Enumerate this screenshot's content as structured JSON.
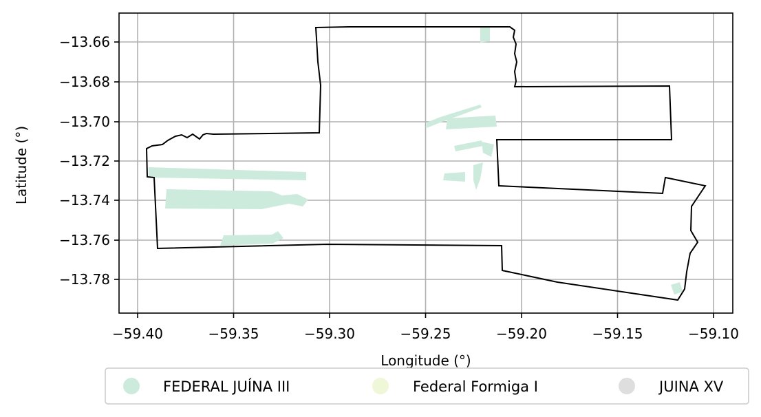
{
  "map": {
    "xlabel": "Longitude (°)",
    "ylabel": "Latitude (°)",
    "x_ticks": [
      "−59.40",
      "−59.35",
      "−59.30",
      "−59.25",
      "−59.20",
      "−59.15",
      "−59.10"
    ],
    "y_ticks": [
      "−13.66",
      "−13.68",
      "−13.70",
      "−13.72",
      "−13.74",
      "−13.76",
      "−13.78"
    ],
    "grid": true,
    "boundary_color": "#000000"
  },
  "legend": {
    "placement": "bottom-center",
    "items": [
      {
        "label": "FEDERAL JUÍNA III",
        "color": "#cdebdc"
      },
      {
        "label": "Federal Formiga I",
        "color": "#eef7d8"
      },
      {
        "label": "JUINA XV",
        "color": "#dedede"
      }
    ]
  }
}
